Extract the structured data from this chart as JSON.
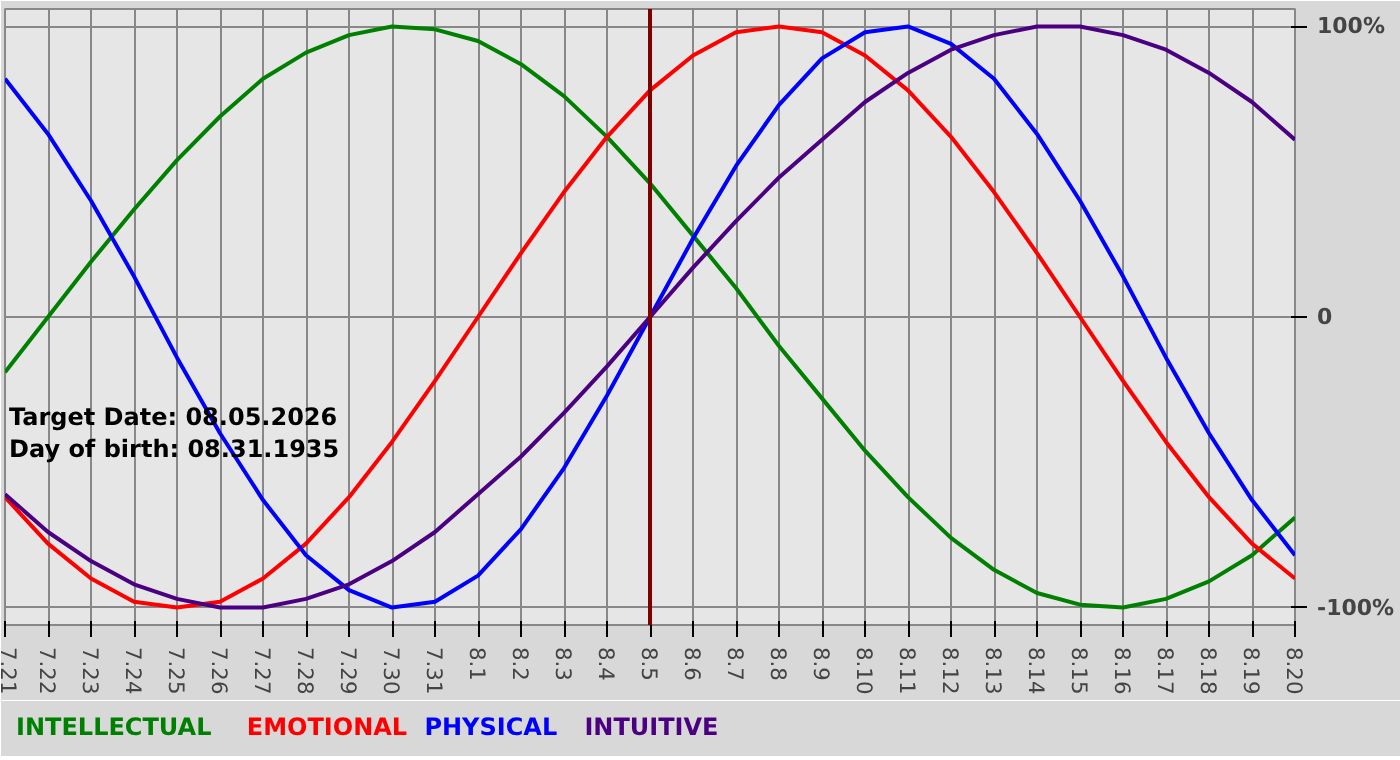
{
  "chart_data": {
    "type": "line",
    "categories": [
      "7.21",
      "7.22",
      "7.23",
      "7.24",
      "7.25",
      "7.26",
      "7.27",
      "7.28",
      "7.29",
      "7.30",
      "7.31",
      "8.1",
      "8.2",
      "8.3",
      "8.4",
      "8.5",
      "8.6",
      "8.7",
      "8.8",
      "8.9",
      "8.10",
      "8.11",
      "8.12",
      "8.13",
      "8.14",
      "8.15",
      "8.16",
      "8.17",
      "8.18",
      "8.19",
      "8.20"
    ],
    "series": [
      {
        "name": "INTELLECTUAL",
        "color": "#008000",
        "values": [
          -19,
          0,
          19,
          37,
          54,
          69,
          82,
          91,
          97,
          100,
          99,
          95,
          87,
          76,
          62,
          46,
          28,
          10,
          -10,
          -28,
          -46,
          -62,
          -76,
          -87,
          -95,
          -99,
          -100,
          -97,
          -91,
          -82,
          -69
        ]
      },
      {
        "name": "EMOTIONAL",
        "color": "#ff0000",
        "values": [
          -62,
          -78,
          -90,
          -98,
          -100,
          -98,
          -90,
          -78,
          -62,
          -43,
          -22,
          0,
          22,
          43,
          62,
          78,
          90,
          98,
          100,
          98,
          90,
          78,
          62,
          43,
          22,
          0,
          -22,
          -43,
          -62,
          -78,
          -90
        ]
      },
      {
        "name": "PHYSICAL",
        "color": "#0000ff",
        "values": [
          82,
          63,
          40,
          14,
          -14,
          -40,
          -63,
          -82,
          -94,
          -100,
          -98,
          -89,
          -73,
          -52,
          -27,
          0,
          27,
          52,
          73,
          89,
          98,
          100,
          94,
          82,
          63,
          40,
          14,
          -14,
          -40,
          -63,
          -82
        ]
      },
      {
        "name": "INTUITIVE",
        "color": "#4b0082",
        "values": [
          -61,
          -74,
          -84,
          -92,
          -97,
          -100,
          -100,
          -97,
          -92,
          -84,
          -74,
          -61,
          -48,
          -33,
          -17,
          0,
          17,
          33,
          48,
          61,
          74,
          84,
          92,
          97,
          100,
          100,
          97,
          92,
          84,
          74,
          61
        ]
      }
    ],
    "ylim": [
      -100,
      100
    ],
    "yticks": [
      {
        "value": 100,
        "label": "100%"
      },
      0,
      {
        "value": -100,
        "label": "-100%"
      }
    ],
    "grid": true,
    "ref_lines": [
      {
        "axis": "x",
        "value": "8.5",
        "color": "#800000"
      }
    ],
    "annotations": [
      "Target Date: 08.05.2026",
      "Day of birth: 08.31.1935"
    ]
  }
}
